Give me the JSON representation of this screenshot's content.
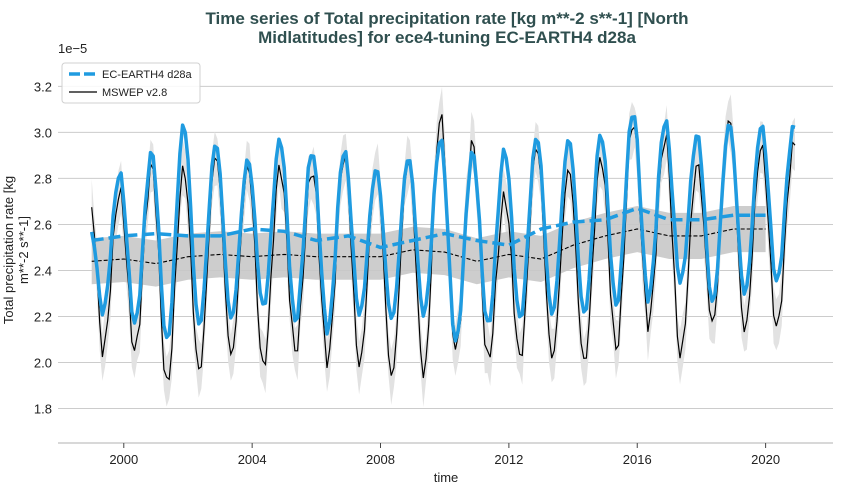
{
  "chart_data": {
    "type": "line",
    "title_lines": [
      "Time series of Total precipitation rate [kg m**-2 s**-1] [North",
      "Midlatitudes] for ece4-tuning EC-EARTH4 d28a"
    ],
    "xlabel": "time",
    "ylabel_lines": [
      "Total precipitation rate [kg",
      "m**-2 s**-1]"
    ],
    "y_scale_label": "1e−5",
    "xlim": [
      1997.95,
      2022.1
    ],
    "ylim": [
      1.65,
      3.38
    ],
    "x_ticks": [
      2000,
      2004,
      2008,
      2012,
      2016,
      2020
    ],
    "y_ticks": [
      1.8,
      2.0,
      2.2,
      2.4,
      2.6,
      2.8,
      3.0,
      3.2
    ],
    "y_tick_labels": [
      "1.8",
      "2.0",
      "2.2",
      "2.4",
      "2.6",
      "2.8",
      "3.0",
      "3.2"
    ],
    "grid": "horizontal",
    "legend": {
      "placement": "top-left",
      "entries": [
        "EC-EARTH4 d28a",
        "MSWEP v2.8"
      ]
    },
    "colors": {
      "model": "#1f9be0",
      "obs": "#000000",
      "obs_band": "#c8c8c8",
      "obs_monthly_band": "#e2e2e2",
      "grid": "#cccccc",
      "title": "#2f4f4f"
    },
    "years": [
      1999,
      2000,
      2001,
      2002,
      2003,
      2004,
      2005,
      2006,
      2007,
      2008,
      2009,
      2010,
      2011,
      2012,
      2013,
      2014,
      2015,
      2016,
      2017,
      2018,
      2019,
      2020
    ],
    "series": [
      {
        "name": "EC-EARTH4 d28a",
        "start_value": 2.56,
        "seasonal_troughs": [
          2.22,
          2.17,
          2.09,
          2.16,
          2.19,
          2.24,
          2.18,
          2.14,
          2.21,
          2.19,
          2.21,
          2.09,
          2.16,
          2.19,
          2.21,
          2.21,
          2.25,
          2.28,
          2.35,
          2.26,
          2.3,
          2.35
        ],
        "seasonal_peaks": [
          2.82,
          2.91,
          3.03,
          2.95,
          2.88,
          2.97,
          2.92,
          2.92,
          2.84,
          2.89,
          2.97,
          2.91,
          2.92,
          2.98,
          2.97,
          2.99,
          3.09,
          3.05,
          2.99,
          3.04,
          3.03,
          3.02
        ],
        "annual_mean": [
          2.53,
          2.55,
          2.56,
          2.55,
          2.55,
          2.58,
          2.57,
          2.53,
          2.55,
          2.5,
          2.53,
          2.56,
          2.53,
          2.51,
          2.58,
          2.61,
          2.62,
          2.67,
          2.62,
          2.62,
          2.64,
          2.64
        ]
      },
      {
        "name": "MSWEP v2.8",
        "start_value": 2.66,
        "seasonal_troughs": [
          2.05,
          2.05,
          1.9,
          1.96,
          2.03,
          1.98,
          2.05,
          2.01,
          1.99,
          1.94,
          1.95,
          2.05,
          2.01,
          2.02,
          2.02,
          2.0,
          2.06,
          2.17,
          2.03,
          2.17,
          2.14,
          2.15
        ],
        "seasonal_peaks": [
          2.74,
          2.85,
          2.84,
          2.9,
          2.85,
          2.85,
          2.84,
          2.9,
          2.84,
          2.88,
          3.07,
          2.95,
          2.72,
          2.94,
          2.84,
          2.89,
          3.05,
          2.98,
          2.86,
          3.06,
          2.94,
          2.94
        ],
        "annual_mean": [
          2.44,
          2.45,
          2.43,
          2.46,
          2.47,
          2.46,
          2.47,
          2.46,
          2.46,
          2.46,
          2.49,
          2.48,
          2.44,
          2.47,
          2.45,
          2.51,
          2.55,
          2.58,
          2.55,
          2.55,
          2.58,
          2.58
        ],
        "annual_band_halfwidth": 0.1,
        "monthly_band_halfwidth": 0.08
      }
    ]
  }
}
